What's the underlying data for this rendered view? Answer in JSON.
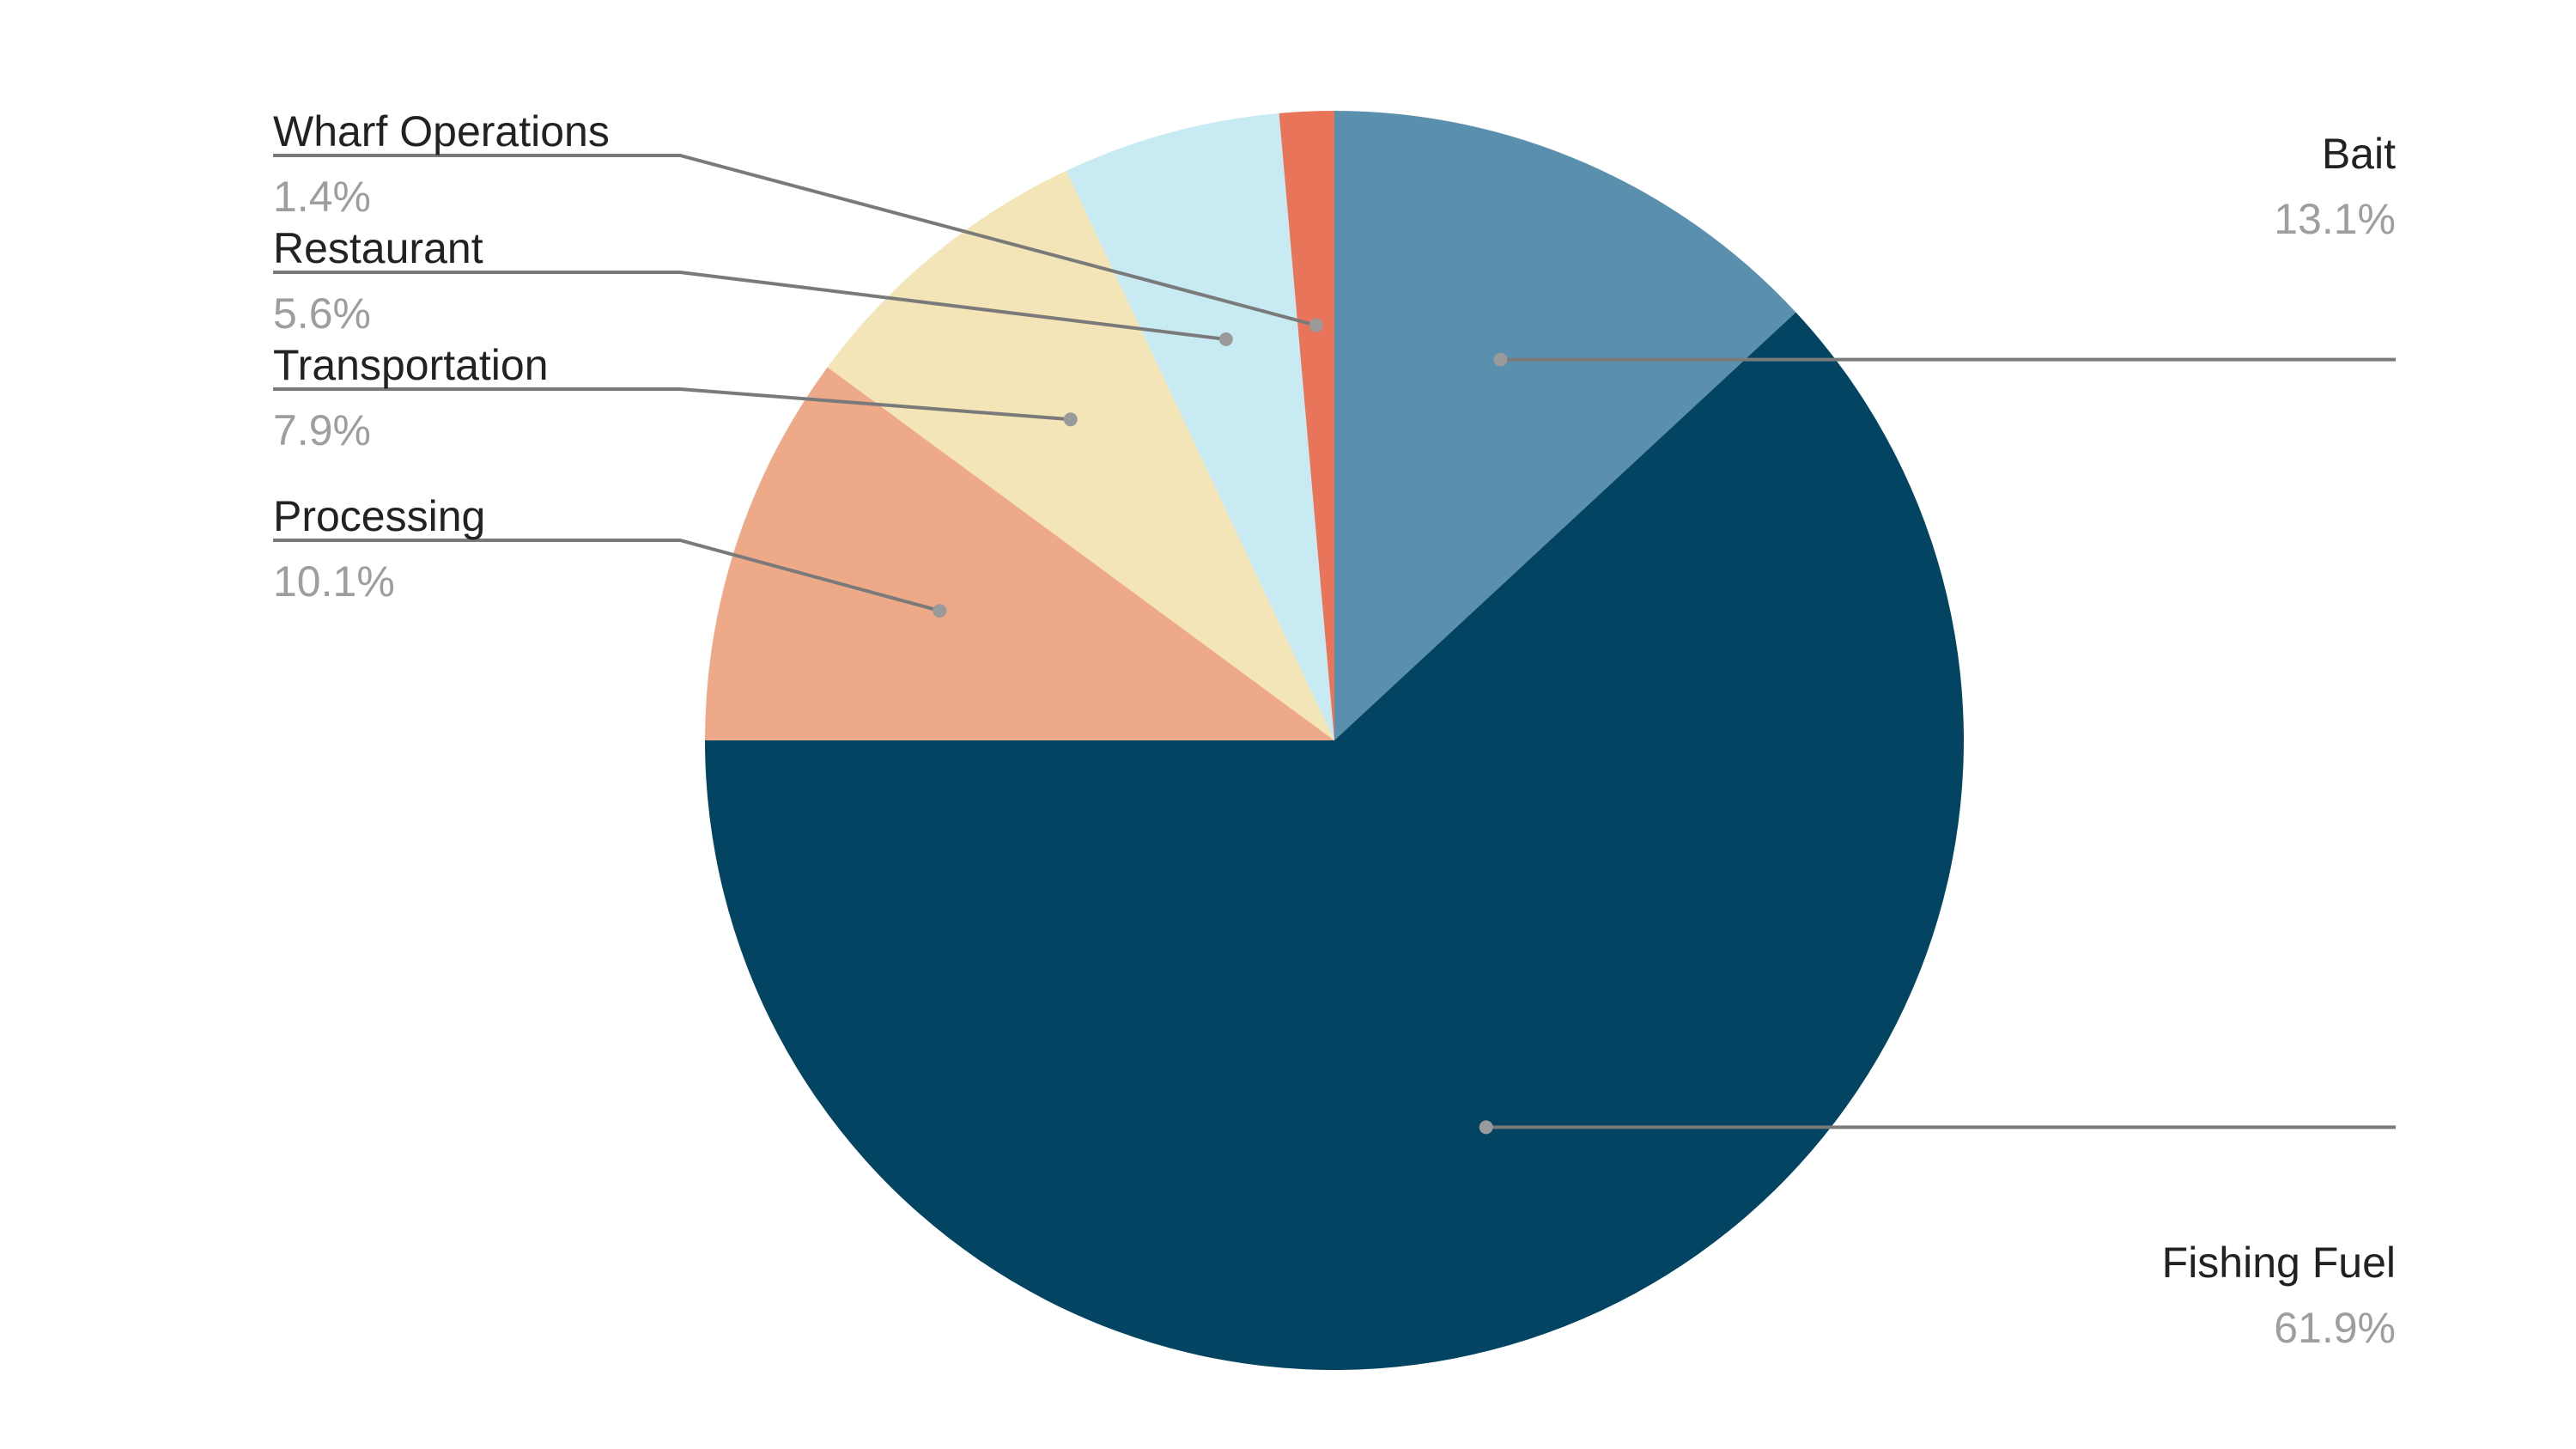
{
  "chart_data": {
    "type": "pie",
    "title": "",
    "start_angle_deg": 0,
    "direction": "clockwise",
    "legend": "none",
    "slices": [
      {
        "label": "Bait",
        "value": 13.1,
        "display": "13.1%",
        "color": "#5b8fae"
      },
      {
        "label": "Fishing Fuel",
        "value": 61.9,
        "display": "61.9%",
        "color": "#024461"
      },
      {
        "label": "Processing",
        "value": 10.1,
        "display": "10.1%",
        "color": "#eea989"
      },
      {
        "label": "Transportation",
        "value": 7.9,
        "display": "7.9%",
        "color": "#f3e5b8"
      },
      {
        "label": "Restaurant",
        "value": 5.6,
        "display": "5.6%",
        "color": "#c8eaf2"
      },
      {
        "label": "Wharf Operations",
        "value": 1.4,
        "display": "1.4%",
        "color": "#e8745a"
      }
    ]
  }
}
